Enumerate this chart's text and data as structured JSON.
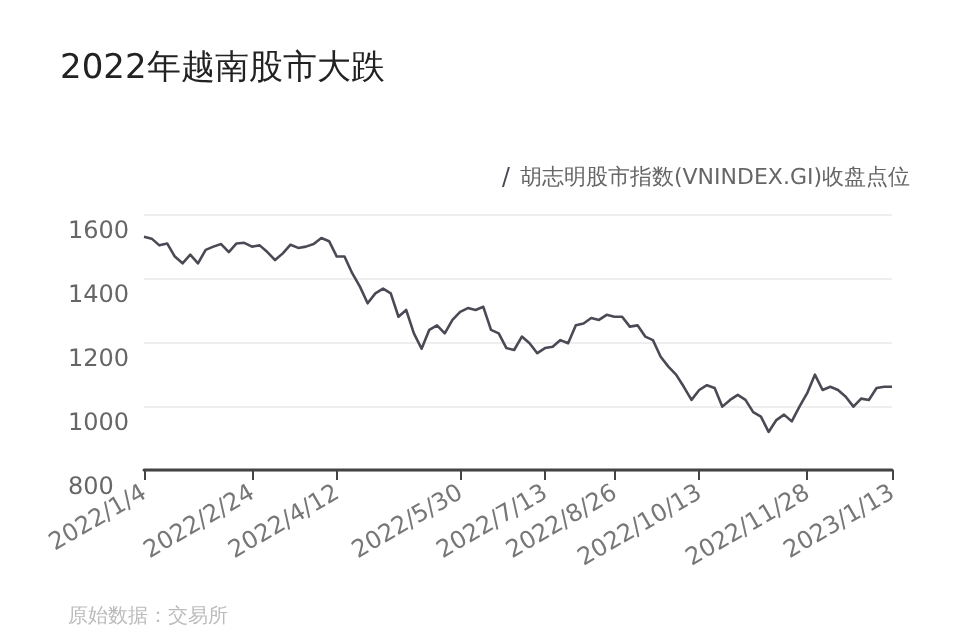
{
  "chart_data": {
    "type": "line",
    "title": "2022年越南股市大跌",
    "annotations": [
      "原始数据：交易所"
    ],
    "categories": [
      "2022/1/4",
      null,
      null,
      null,
      null,
      null,
      null,
      null,
      null,
      null,
      null,
      null,
      null,
      null,
      "2022/2/24",
      null,
      null,
      null,
      null,
      null,
      null,
      null,
      null,
      null,
      null,
      "2022/4/12",
      null,
      null,
      null,
      null,
      null,
      null,
      null,
      null,
      null,
      null,
      null,
      null,
      null,
      null,
      null,
      "2022/5/30",
      null,
      null,
      null,
      null,
      null,
      null,
      null,
      null,
      null,
      null,
      "2022/7/13",
      null,
      null,
      null,
      null,
      null,
      null,
      null,
      null,
      "2022/8/26",
      null,
      null,
      null,
      null,
      null,
      null,
      null,
      null,
      null,
      null,
      "2022/10/13",
      null,
      null,
      null,
      null,
      null,
      null,
      null,
      null,
      null,
      null,
      null,
      null,
      null,
      "2022/11/28",
      null,
      null,
      null,
      null,
      null,
      null,
      null,
      null,
      null,
      null,
      "2023/1/13"
    ],
    "series": [
      {
        "name": "胡志明股市指数(VNINDEX.GI)收盘点位",
        "color": "#4a4a55",
        "values": [
          1529,
          1523,
          1502,
          1508,
          1467,
          1446,
          1473,
          1446,
          1488,
          1498,
          1506,
          1481,
          1508,
          1510,
          1498,
          1502,
          1481,
          1456,
          1477,
          1504,
          1494,
          1498,
          1506,
          1525,
          1515,
          1467,
          1467,
          1415,
          1373,
          1321,
          1352,
          1367,
          1352,
          1279,
          1300,
          1227,
          1179,
          1238,
          1252,
          1227,
          1269,
          1294,
          1306,
          1300,
          1310,
          1238,
          1227,
          1181,
          1175,
          1217,
          1196,
          1165,
          1181,
          1185,
          1206,
          1196,
          1252,
          1258,
          1275,
          1269,
          1285,
          1279,
          1279,
          1248,
          1252,
          1217,
          1206,
          1154,
          1123,
          1098,
          1060,
          1019,
          1050,
          1065,
          1056,
          998,
          1019,
          1035,
          1019,
          981,
          967,
          919,
          956,
          973,
          952,
          998,
          1040,
          1098,
          1050,
          1060,
          1050,
          1029,
          998,
          1023,
          1019,
          1056,
          1060,
          1060
        ]
      }
    ],
    "ylim": [
      800,
      1600
    ],
    "yticks": [
      800,
      1000,
      1200,
      1400,
      1600
    ],
    "grid": "y",
    "legend": "top right",
    "marker": "none",
    "line_style": "solid"
  }
}
